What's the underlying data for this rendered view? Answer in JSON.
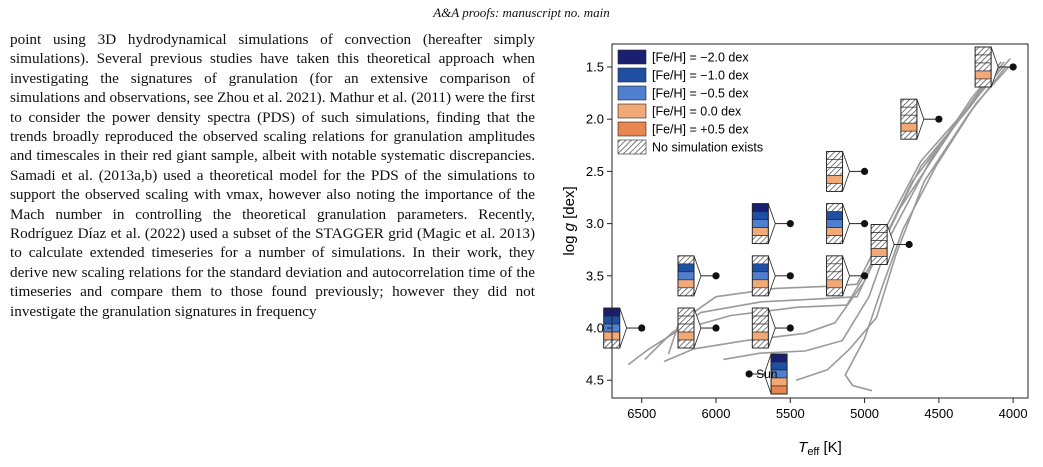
{
  "header": "A&A proofs: manuscript no. main",
  "body_text": "point using 3D hydrodynamical simulations of convection (hereafter simply simulations). Several previous studies have taken this theoretical approach when investigating the signatures of granulation (for an extensive comparison of simulations and observations, see Zhou et al. 2021). Mathur et al. (2011) were the first to consider the power density spectra (PDS) of such simulations, finding that the trends broadly reproduced the observed scaling relations for granulation amplitudes and timescales in their red giant sample, albeit with notable systematic discrepancies. Samadi et al. (2013a,b) used a theoretical model for the PDS of the simulations to support the observed scaling with νmax, however also noting the importance of the Mach number in controlling the theoretical granulation parameters. Recently, Rodríguez Díaz et al. (2022) used a subset of the STAGGER grid (Magic et al. 2013) to calculate extended timeseries for a number of simulations. In their work, they derive new scaling relations for the standard deviation and autocorrelation time of the timeseries and compare them to those found previously; however they did not investigate the granulation signatures in frequency",
  "colors": {
    "m-2.0": "#1a1f70",
    "m-1.0": "#1f4fa3",
    "m-0.5": "#4f7fcf",
    "m0.0": "#f2a978",
    "m+0.5": "#e9854e",
    "tracks": "#9a9a9a"
  },
  "chart_data": {
    "type": "scatter",
    "title": "",
    "xlabel": "T_eff [K]",
    "ylabel": "log g [dex]",
    "xlim": [
      6700,
      3900
    ],
    "ylim": [
      4.67,
      1.28
    ],
    "x_ticks": [
      6500,
      6000,
      5500,
      5000,
      4500,
      4000
    ],
    "y_ticks": [
      1.5,
      2.0,
      2.5,
      3.0,
      3.5,
      4.0,
      4.5
    ],
    "legend_placement": "top-left",
    "legend": [
      {
        "label": "[Fe/H] = −2.0 dex",
        "key": "m-2.0"
      },
      {
        "label": "[Fe/H] = −1.0 dex",
        "key": "m-1.0"
      },
      {
        "label": "[Fe/H] = −0.5 dex",
        "key": "m-0.5"
      },
      {
        "label": "[Fe/H] = 0.0 dex",
        "key": "m0.0"
      },
      {
        "label": "[Fe/H] = +0.5 dex",
        "key": "m+0.5"
      },
      {
        "label": "No simulation exists",
        "key": "hatch"
      }
    ],
    "sun_label": "Sun",
    "points": [
      {
        "teff": 6500,
        "logg": 4.0,
        "side": "left",
        "mets": [
          "m-2.0",
          "m-1.0",
          "m-0.5",
          "m0.0",
          "hatch"
        ]
      },
      {
        "teff": 6000,
        "logg": 4.0,
        "side": "left",
        "mets": [
          "hatch",
          "hatch",
          "hatch",
          "m0.0",
          "hatch"
        ]
      },
      {
        "teff": 6000,
        "logg": 3.5,
        "side": "left",
        "mets": [
          "hatch",
          "m-1.0",
          "m-0.5",
          "m0.0",
          "hatch"
        ]
      },
      {
        "teff": 5500,
        "logg": 4.0,
        "side": "left",
        "mets": [
          "hatch",
          "hatch",
          "hatch",
          "m0.0",
          "hatch"
        ]
      },
      {
        "teff": 5500,
        "logg": 3.5,
        "side": "left",
        "mets": [
          "hatch",
          "m-1.0",
          "m-0.5",
          "m0.0",
          "hatch"
        ]
      },
      {
        "teff": 5500,
        "logg": 3.0,
        "side": "left",
        "mets": [
          "m-2.0",
          "m-1.0",
          "m-0.5",
          "m0.0",
          "hatch"
        ]
      },
      {
        "teff": 5000,
        "logg": 3.5,
        "side": "left",
        "mets": [
          "hatch",
          "hatch",
          "hatch",
          "m0.0",
          "hatch"
        ]
      },
      {
        "teff": 5000,
        "logg": 3.0,
        "side": "left",
        "mets": [
          "hatch",
          "m-1.0",
          "m-0.5",
          "m0.0",
          "hatch"
        ]
      },
      {
        "teff": 5000,
        "logg": 2.5,
        "side": "left",
        "mets": [
          "hatch",
          "hatch",
          "hatch",
          "m0.0",
          "hatch"
        ]
      },
      {
        "teff": 4700,
        "logg": 3.2,
        "side": "left",
        "mets": [
          "hatch",
          "hatch",
          "hatch",
          "m0.0",
          "hatch"
        ]
      },
      {
        "teff": 4500,
        "logg": 2.0,
        "side": "left",
        "mets": [
          "hatch",
          "hatch",
          "hatch",
          "m0.0",
          "hatch"
        ]
      },
      {
        "teff": 4000,
        "logg": 1.5,
        "side": "left",
        "mets": [
          "hatch",
          "hatch",
          "hatch",
          "m0.0",
          "hatch"
        ]
      },
      {
        "teff": 5777,
        "logg": 4.44,
        "side": "right",
        "mets": [
          "m-2.0",
          "m-1.0",
          "m-0.5",
          "m0.0",
          "m+0.5"
        ],
        "label": "sun"
      }
    ],
    "tracks": [
      [
        [
          6320,
          4.25
        ],
        [
          6250,
          3.95
        ],
        [
          6000,
          3.7
        ],
        [
          5600,
          3.62
        ],
        [
          5250,
          3.6
        ],
        [
          5050,
          3.58
        ],
        [
          4880,
          3.1
        ],
        [
          4620,
          2.4
        ],
        [
          4280,
          1.85
        ],
        [
          4020,
          1.42
        ]
      ],
      [
        [
          6480,
          4.3
        ],
        [
          6300,
          4.05
        ],
        [
          6100,
          3.85
        ],
        [
          5700,
          3.75
        ],
        [
          5300,
          3.72
        ],
        [
          5050,
          3.7
        ],
        [
          4870,
          3.15
        ],
        [
          4620,
          2.45
        ],
        [
          4300,
          1.9
        ],
        [
          4060,
          1.45
        ]
      ],
      [
        [
          6590,
          4.35
        ],
        [
          6450,
          4.2
        ],
        [
          6250,
          4.02
        ],
        [
          5900,
          3.88
        ],
        [
          5450,
          3.8
        ],
        [
          5120,
          3.78
        ],
        [
          4920,
          3.3
        ],
        [
          4680,
          2.6
        ],
        [
          4350,
          1.98
        ],
        [
          4100,
          1.5
        ]
      ],
      [
        [
          6350,
          4.32
        ],
        [
          6150,
          4.2
        ],
        [
          5800,
          4.12
        ],
        [
          5400,
          4.05
        ],
        [
          5200,
          3.95
        ],
        [
          5000,
          3.55
        ],
        [
          4760,
          2.85
        ],
        [
          4420,
          2.12
        ],
        [
          4140,
          1.55
        ]
      ],
      [
        [
          5950,
          4.3
        ],
        [
          5700,
          4.24
        ],
        [
          5400,
          4.22
        ],
        [
          5150,
          4.12
        ],
        [
          4970,
          3.7
        ],
        [
          4820,
          3.1
        ],
        [
          4560,
          2.4
        ],
        [
          4280,
          1.8
        ],
        [
          4080,
          1.45
        ]
      ],
      [
        [
          5460,
          4.5
        ],
        [
          5250,
          4.4
        ],
        [
          5100,
          4.2
        ],
        [
          4920,
          3.9
        ],
        [
          4790,
          3.3
        ],
        [
          4600,
          2.6
        ],
        [
          4300,
          1.95
        ],
        [
          4050,
          1.5
        ]
      ],
      [
        [
          4950,
          4.6
        ],
        [
          5080,
          4.55
        ],
        [
          5130,
          4.45
        ],
        [
          5000,
          4.1
        ],
        [
          4880,
          3.6
        ],
        [
          4740,
          3.05
        ],
        [
          4520,
          2.45
        ],
        [
          4250,
          1.85
        ],
        [
          4030,
          1.5
        ]
      ]
    ]
  }
}
